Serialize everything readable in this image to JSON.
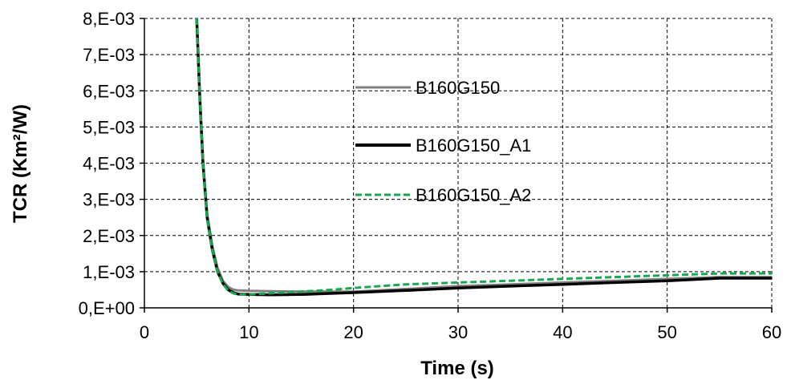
{
  "chart_data": {
    "type": "line",
    "xlabel": "Time (s)",
    "ylabel": "TCR (Km²/W)",
    "xlim": [
      0,
      60
    ],
    "ylim": [
      0,
      0.008
    ],
    "x_ticks": [
      0,
      10,
      20,
      30,
      40,
      50,
      60
    ],
    "x_tick_labels": [
      "0",
      "10",
      "20",
      "30",
      "40",
      "50",
      "60"
    ],
    "y_ticks": [
      0,
      0.001,
      0.002,
      0.003,
      0.004,
      0.005,
      0.006,
      0.007,
      0.008
    ],
    "y_tick_labels": [
      "0,E+00",
      "1,E-03",
      "2,E-03",
      "3,E-03",
      "4,E-03",
      "5,E-03",
      "6,E-03",
      "7,E-03",
      "8,E-03"
    ],
    "grid": true,
    "legend_position": "center",
    "series": [
      {
        "name": "B160G150",
        "color": "#808080",
        "style": "solid",
        "x": [
          5.0,
          5.3,
          5.6,
          6.0,
          6.5,
          7.0,
          7.5,
          8.0,
          8.5,
          9.0,
          10,
          12,
          15,
          18,
          20,
          25,
          30,
          35,
          40,
          45,
          50,
          55,
          60
        ],
        "y": [
          0.008,
          0.0058,
          0.004,
          0.0026,
          0.0017,
          0.0011,
          0.00075,
          0.00058,
          0.0005,
          0.00048,
          0.00047,
          0.00046,
          0.00045,
          0.00045,
          0.00045,
          0.00052,
          0.0006,
          0.00065,
          0.0007,
          0.00075,
          0.0008,
          0.00085,
          0.00085
        ]
      },
      {
        "name": "B160G150_A1",
        "color": "#000000",
        "style": "solid",
        "x": [
          5.0,
          5.3,
          5.6,
          6.0,
          6.5,
          7.0,
          7.5,
          8.0,
          8.5,
          9.0,
          10,
          12,
          15,
          18,
          20,
          25,
          30,
          35,
          40,
          45,
          50,
          55,
          60
        ],
        "y": [
          0.008,
          0.0058,
          0.004,
          0.0025,
          0.0016,
          0.001,
          0.00068,
          0.0005,
          0.00042,
          0.00038,
          0.00037,
          0.00036,
          0.00037,
          0.0004,
          0.00042,
          0.00048,
          0.00055,
          0.0006,
          0.00065,
          0.0007,
          0.00075,
          0.00082,
          0.00082
        ]
      },
      {
        "name": "B160G150_A2",
        "color": "#1aa84f",
        "style": "dashed",
        "x": [
          5.0,
          5.3,
          5.6,
          6.0,
          6.5,
          7.0,
          7.5,
          8.0,
          8.5,
          9.0,
          10,
          12,
          15,
          18,
          20,
          25,
          30,
          35,
          40,
          45,
          50,
          55,
          60
        ],
        "y": [
          0.008,
          0.0058,
          0.004,
          0.0025,
          0.0016,
          0.001,
          0.00066,
          0.00048,
          0.0004,
          0.00037,
          0.00037,
          0.0004,
          0.00045,
          0.0005,
          0.00055,
          0.00065,
          0.0007,
          0.00075,
          0.0008,
          0.00085,
          0.0009,
          0.00095,
          0.00095
        ]
      }
    ]
  }
}
